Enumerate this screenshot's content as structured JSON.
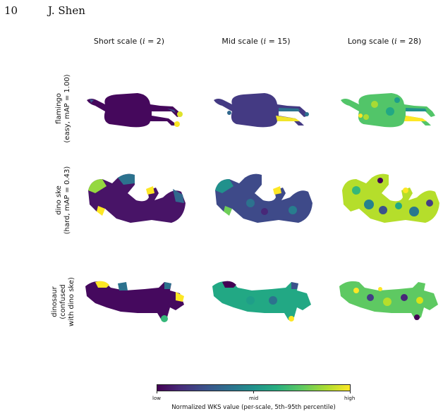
{
  "header": {
    "page_number": "10",
    "author": "J. Shen"
  },
  "columns": [
    {
      "prefix": "Short scale (",
      "var": "i",
      "suffix": " = 2)"
    },
    {
      "prefix": "Mid scale (",
      "var": "i",
      "suffix": " = 15)"
    },
    {
      "prefix": "Long scale (",
      "var": "i",
      "suffix": " = 28)"
    }
  ],
  "rows": [
    {
      "line1": "flamingo",
      "line2": "(easy, mAP = 1.00)",
      "line3": ""
    },
    {
      "line1": "dino ske",
      "line2": "(hard, mAP = 0.43)",
      "line3": ""
    },
    {
      "line1": "dinosaur",
      "line2": "(confused",
      "line3": "with dino ske)"
    }
  ],
  "colorbar": {
    "tick_low": "low",
    "tick_mid": "mid",
    "tick_high": "high",
    "label": "Normalized WKS value (per-scale, 5th–95th percentile)",
    "colormap": [
      "#440154",
      "#3b528b",
      "#21918c",
      "#5ec962",
      "#fde725"
    ]
  },
  "colors": {
    "low": "#440154",
    "lowmid": "#3b528b",
    "mid": "#21918c",
    "midhigh": "#5ec962",
    "high": "#fde725"
  }
}
